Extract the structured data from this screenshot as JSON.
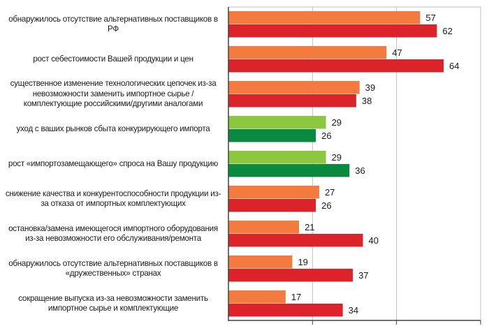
{
  "chart_data": {
    "type": "bar",
    "orientation": "horizontal",
    "categories": [
      "обнаружилось отсутствие альтернативных поставщиков в\nРФ",
      "рост себестоимости Вашей продукции и цен",
      "существенное изменение технологических цепочек из-за\nневозможности заменить импортное сырье /\nкомплектующие российскими/другими аналогами",
      "уход с ваших рынков сбыта конкурирующего импорта",
      "рост «импортозамещающего» спроса на Вашу продукцию",
      "снижение качества и конкурентоспособности продукции из-\nза отказа от импортных комплектующих",
      "остановка/замена имеющегося импортного оборудования\nиз-за невозможности его обслуживания/ремонта",
      "обнаружилось отсутствие альтернативных поставщиков в\n«дружественных» странах",
      "сокращение выпуска из-за невозможности заменить\nимпортное сырье и комплектующие"
    ],
    "series": [
      {
        "values": [
          57,
          47,
          39,
          29,
          29,
          27,
          21,
          19,
          17
        ]
      },
      {
        "values": [
          62,
          64,
          38,
          26,
          36,
          26,
          40,
          37,
          34
        ]
      }
    ],
    "colors": {
      "negative_first": "#F47B3F",
      "negative_second": "#DC2329",
      "positive_first": "#8DC63F",
      "positive_second": "#0A8A3E"
    },
    "positive_categories": [
      3,
      4
    ],
    "xlim": [
      0,
      75
    ],
    "gridlines": [
      25,
      50,
      75
    ],
    "grid": true,
    "data_labels": true
  }
}
